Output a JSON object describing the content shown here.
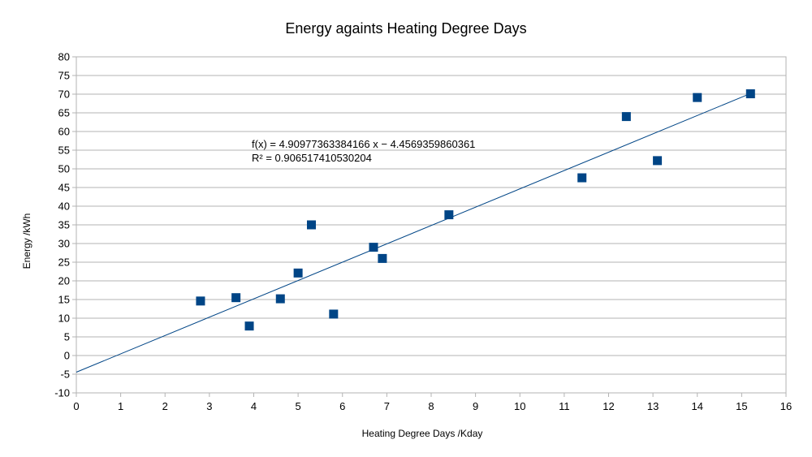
{
  "chart_data": {
    "type": "scatter",
    "title": "Energy againts Heating Degree Days",
    "xlabel": "Heating Degree Days /Kday",
    "ylabel": "Energy /kWh",
    "xlim": [
      0,
      16
    ],
    "ylim": [
      -10,
      80
    ],
    "x_ticks": [
      0,
      1,
      2,
      3,
      4,
      5,
      6,
      7,
      8,
      9,
      10,
      11,
      12,
      13,
      14,
      15,
      16
    ],
    "y_ticks": [
      -10,
      -5,
      0,
      5,
      10,
      15,
      20,
      25,
      30,
      35,
      40,
      45,
      50,
      55,
      60,
      65,
      70,
      75,
      80
    ],
    "grid": true,
    "marker_color": "#004586",
    "series": [
      {
        "points": [
          {
            "x": 2.8,
            "y": 14.6
          },
          {
            "x": 3.6,
            "y": 15.5
          },
          {
            "x": 3.9,
            "y": 7.9
          },
          {
            "x": 4.6,
            "y": 15.2
          },
          {
            "x": 5.0,
            "y": 22.1
          },
          {
            "x": 5.3,
            "y": 35.0
          },
          {
            "x": 5.8,
            "y": 11.1
          },
          {
            "x": 6.7,
            "y": 29.0
          },
          {
            "x": 6.9,
            "y": 26.0
          },
          {
            "x": 8.4,
            "y": 37.7
          },
          {
            "x": 11.4,
            "y": 47.6
          },
          {
            "x": 12.4,
            "y": 64.0
          },
          {
            "x": 13.1,
            "y": 52.2
          },
          {
            "x": 14.0,
            "y": 69.1
          },
          {
            "x": 15.2,
            "y": 70.1
          }
        ]
      }
    ],
    "trendline": {
      "slope": 4.90977363384166,
      "intercept": -4.4569359860361,
      "x_range": [
        0,
        15.2
      ],
      "equation_label": "f(x) = 4.90977363384166 x − 4.4569359860361",
      "r2_label": "R² = 0.906517410530204"
    }
  }
}
